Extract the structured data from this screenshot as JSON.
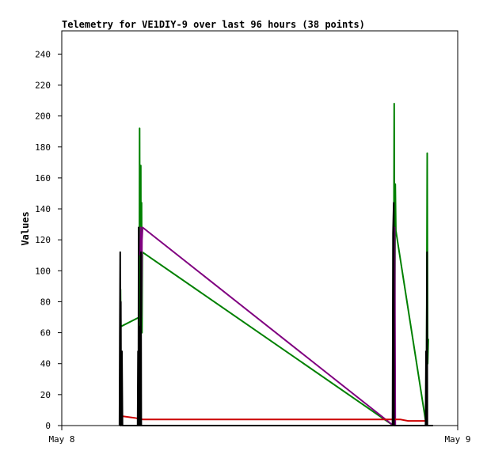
{
  "chart_data": {
    "type": "line",
    "title": "Telemetry for VE1DIY-9 over last 96 hours (38 points)",
    "xlabel": "",
    "ylabel": "Values",
    "x_tick_labels": [
      "May 8",
      "May 9"
    ],
    "xlim": [
      0,
      24
    ],
    "ylim": [
      0,
      255
    ],
    "y_ticks": [
      0,
      20,
      40,
      60,
      80,
      100,
      120,
      140,
      160,
      180,
      200,
      220,
      240
    ],
    "grid": false,
    "series": [
      {
        "color": "#008000",
        "points": [
          [
            3.55,
            64
          ],
          [
            3.56,
            88
          ],
          [
            3.58,
            64
          ],
          [
            4.7,
            70
          ],
          [
            4.72,
            192
          ],
          [
            4.74,
            40
          ],
          [
            4.79,
            168
          ],
          [
            4.81,
            60
          ],
          [
            4.84,
            144
          ],
          [
            4.86,
            60
          ],
          [
            4.89,
            112
          ],
          [
            20.1,
            0
          ],
          [
            20.15,
            208
          ],
          [
            20.18,
            60
          ],
          [
            20.22,
            156
          ],
          [
            20.25,
            126
          ],
          [
            22.1,
            0
          ],
          [
            22.15,
            176
          ],
          [
            22.18,
            40
          ],
          [
            22.22,
            56
          ]
        ]
      },
      {
        "color": "#800080",
        "points": [
          [
            4.74,
            110
          ],
          [
            4.78,
            128
          ],
          [
            4.82,
            70
          ],
          [
            4.86,
            120
          ],
          [
            4.9,
            128
          ],
          [
            20.1,
            0
          ],
          [
            20.18,
            128
          ],
          [
            20.22,
            0
          ]
        ]
      },
      {
        "color": "#cc0000",
        "points": [
          [
            3.55,
            7
          ],
          [
            3.7,
            6
          ],
          [
            4.4,
            5
          ],
          [
            4.9,
            4
          ],
          [
            20.0,
            4
          ],
          [
            20.5,
            4
          ],
          [
            21.0,
            3
          ],
          [
            22.2,
            3
          ]
        ]
      },
      {
        "color": "#000000",
        "points": [
          [
            3.5,
            0
          ],
          [
            3.52,
            56
          ],
          [
            3.54,
            112
          ],
          [
            3.56,
            0
          ],
          [
            3.58,
            80
          ],
          [
            3.6,
            0
          ],
          [
            3.65,
            48
          ],
          [
            3.68,
            0
          ],
          [
            4.6,
            0
          ],
          [
            4.62,
            48
          ],
          [
            4.64,
            0
          ],
          [
            4.66,
            128
          ],
          [
            4.68,
            0
          ],
          [
            4.72,
            64
          ],
          [
            4.74,
            0
          ],
          [
            4.78,
            0
          ],
          [
            4.8,
            112
          ],
          [
            4.82,
            0
          ],
          [
            20.05,
            0
          ],
          [
            20.08,
            124
          ],
          [
            20.12,
            144
          ],
          [
            20.14,
            0
          ],
          [
            22.05,
            0
          ],
          [
            22.08,
            48
          ],
          [
            22.1,
            0
          ],
          [
            22.12,
            56
          ],
          [
            22.14,
            112
          ],
          [
            22.16,
            0
          ],
          [
            22.5,
            0
          ]
        ]
      }
    ]
  }
}
